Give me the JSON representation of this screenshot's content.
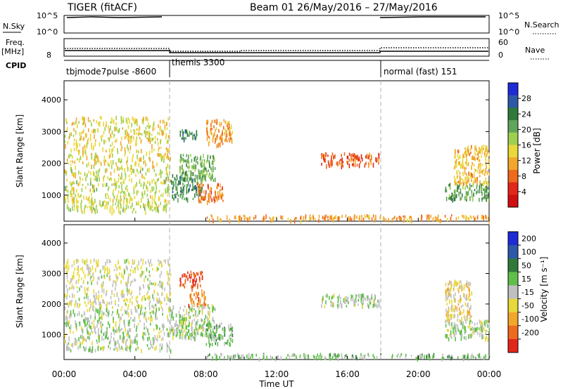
{
  "header": {
    "title_left": "TIGER (fitACF)",
    "title_right": "Beam 01 26/May/2016 – 27/May/2016"
  },
  "top_panels": {
    "nsky_label": "N.Sky",
    "nsearch_label": "N.Search",
    "nsky_ticks": [
      "10^5",
      "10^0"
    ],
    "nsky_right_ticks": [
      "10^5",
      "10^0"
    ],
    "freq_label": "Freq.",
    "freq_unit": "[MHz]",
    "freq_tick": "8",
    "nave_label": "Nave",
    "nave_ticks": [
      "60",
      "0"
    ],
    "cpid_label": "CPID",
    "cpid_segments": [
      {
        "start_hour": 0,
        "end_hour": 6,
        "label": "tbjmode7pulse -8600"
      },
      {
        "start_hour": 6,
        "end_hour": 18,
        "label": "themis 3300"
      },
      {
        "start_hour": 18,
        "end_hour": 24,
        "label": "normal (fast) 151"
      }
    ]
  },
  "colors": {
    "power_scale": [
      "#1e2bd6",
      "#2d58a8",
      "#2f7a3a",
      "#5fa55a",
      "#9fcf4f",
      "#e8d83a",
      "#f2a62b",
      "#ee6a1d",
      "#e3271a",
      "#d10f10"
    ],
    "velocity_scale": [
      "#1e2bd6",
      "#2d58a8",
      "#2f7a3a",
      "#5fbf4a",
      "#c0c0c0",
      "#e8d83a",
      "#f2a62b",
      "#ee6a1d",
      "#e3271a"
    ]
  },
  "chart_data": [
    {
      "type": "heatmap",
      "name": "power",
      "ylabel": "Slant Range [km]",
      "ylim": [
        180,
        4600
      ],
      "xlim_hours": [
        0,
        24
      ],
      "yticks": [
        1000,
        2000,
        3000,
        4000
      ],
      "colorbar": {
        "label": "Power [dB]",
        "ticks": [
          4,
          8,
          12,
          16,
          20,
          24,
          28
        ],
        "range": [
          0,
          32
        ]
      },
      "regions": [
        {
          "x": [
            0.0,
            6.0
          ],
          "y": [
            1900,
            3500
          ],
          "value": 14
        },
        {
          "x": [
            0.0,
            6.0
          ],
          "y": [
            500,
            1900
          ],
          "value": 16
        },
        {
          "x": [
            6.0,
            7.8
          ],
          "y": [
            900,
            1700
          ],
          "value": 24
        },
        {
          "x": [
            6.5,
            8.5
          ],
          "y": [
            1500,
            2300
          ],
          "value": 20
        },
        {
          "x": [
            6.5,
            7.5
          ],
          "y": [
            2800,
            3100
          ],
          "value": 24
        },
        {
          "x": [
            7.5,
            9.0
          ],
          "y": [
            800,
            1400
          ],
          "value": 8
        },
        {
          "x": [
            8.0,
            9.5
          ],
          "y": [
            2600,
            3400
          ],
          "value": 10
        },
        {
          "x": [
            14.5,
            17.8
          ],
          "y": [
            1950,
            2350
          ],
          "value": 6
        },
        {
          "x": [
            21.5,
            24.0
          ],
          "y": [
            900,
            1400
          ],
          "value": 22
        },
        {
          "x": [
            22.0,
            24.0
          ],
          "y": [
            1400,
            2600
          ],
          "value": 12
        },
        {
          "x": [
            8.0,
            24.0
          ],
          "y": [
            250,
            400
          ],
          "value": 10
        }
      ]
    },
    {
      "type": "heatmap",
      "name": "velocity",
      "ylabel": "Slant Range [km]",
      "xlabel": "Time UT",
      "ylim": [
        180,
        4600
      ],
      "xlim_hours": [
        0,
        24
      ],
      "yticks": [
        1000,
        2000,
        3000,
        4000
      ],
      "xticks": [
        "00:00",
        "04:00",
        "08:00",
        "12:00",
        "16:00",
        "20:00",
        "00:00"
      ],
      "colorbar": {
        "label": "Velocity [m s⁻¹]",
        "ticks": [
          200,
          100,
          50,
          15,
          -15,
          -50,
          -100,
          -200
        ]
      },
      "regions": [
        {
          "x": [
            0.0,
            6.0
          ],
          "y": [
            1900,
            3500
          ],
          "value": -30
        },
        {
          "x": [
            0.0,
            6.0
          ],
          "y": [
            500,
            1900
          ],
          "value": 0
        },
        {
          "x": [
            6.0,
            8.5
          ],
          "y": [
            900,
            2000
          ],
          "value": 0
        },
        {
          "x": [
            6.5,
            7.8
          ],
          "y": [
            2600,
            3100
          ],
          "value": -200
        },
        {
          "x": [
            7.0,
            8.0
          ],
          "y": [
            2000,
            2500
          ],
          "value": -150
        },
        {
          "x": [
            8.0,
            9.5
          ],
          "y": [
            700,
            1400
          ],
          "value": 40
        },
        {
          "x": [
            14.5,
            17.8
          ],
          "y": [
            1950,
            2350
          ],
          "value": 10
        },
        {
          "x": [
            21.5,
            24.0
          ],
          "y": [
            900,
            1500
          ],
          "value": 0
        },
        {
          "x": [
            21.5,
            23.0
          ],
          "y": [
            1500,
            2800
          ],
          "value": -60
        },
        {
          "x": [
            8.0,
            24.0
          ],
          "y": [
            250,
            400
          ],
          "value": 30
        }
      ]
    }
  ]
}
